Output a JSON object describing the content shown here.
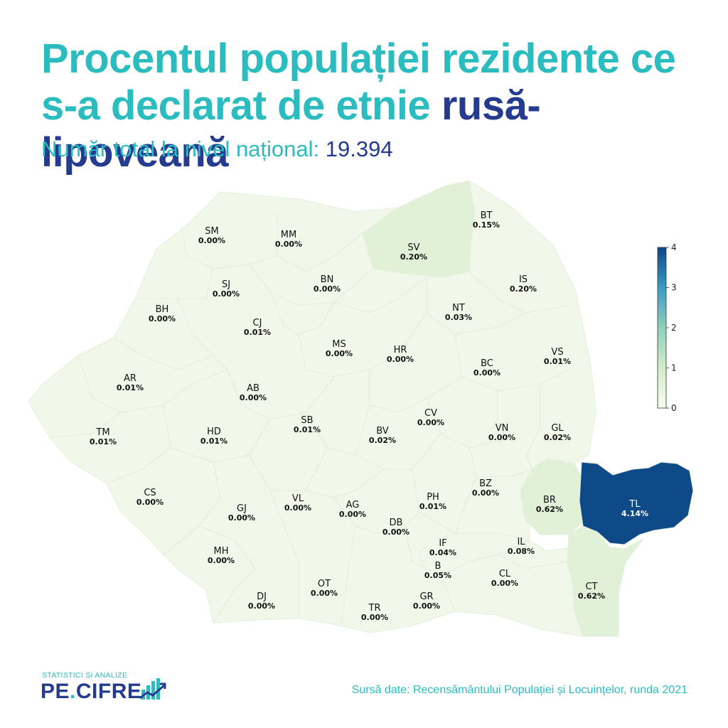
{
  "title": {
    "line1": "Procentul populației rezidente ce",
    "line2_prefix": "s-a declarat de etnie ",
    "line2_highlight": "rusă-lipoveană"
  },
  "subtitle": {
    "label": "Număr total la nivel național: ",
    "value": "19.394"
  },
  "colors": {
    "base": "#f1f8ea",
    "light": "#e0f1d8",
    "dark": "#0f4a88",
    "border": "#e4eedd"
  },
  "chart_data": {
    "type": "choropleth",
    "unit": "%",
    "colorbar": {
      "min": 0,
      "max": 4,
      "ticks": [
        "0",
        "1",
        "2",
        "3",
        "4"
      ]
    },
    "regions": [
      {
        "code": "SM",
        "value": "0.00%"
      },
      {
        "code": "MM",
        "value": "0.00%"
      },
      {
        "code": "SV",
        "value": "0.20%"
      },
      {
        "code": "BT",
        "value": "0.15%"
      },
      {
        "code": "SJ",
        "value": "0.00%"
      },
      {
        "code": "BN",
        "value": "0.00%"
      },
      {
        "code": "IS",
        "value": "0.20%"
      },
      {
        "code": "BH",
        "value": "0.00%"
      },
      {
        "code": "CJ",
        "value": "0.01%"
      },
      {
        "code": "NT",
        "value": "0.03%"
      },
      {
        "code": "MS",
        "value": "0.00%"
      },
      {
        "code": "HR",
        "value": "0.00%"
      },
      {
        "code": "BC",
        "value": "0.00%"
      },
      {
        "code": "VS",
        "value": "0.01%"
      },
      {
        "code": "AR",
        "value": "0.01%"
      },
      {
        "code": "AB",
        "value": "0.00%"
      },
      {
        "code": "CV",
        "value": "0.00%"
      },
      {
        "code": "TM",
        "value": "0.01%"
      },
      {
        "code": "HD",
        "value": "0.01%"
      },
      {
        "code": "SB",
        "value": "0.01%"
      },
      {
        "code": "BV",
        "value": "0.02%"
      },
      {
        "code": "VN",
        "value": "0.00%"
      },
      {
        "code": "GL",
        "value": "0.02%"
      },
      {
        "code": "BZ",
        "value": "0.00%"
      },
      {
        "code": "CS",
        "value": "0.00%"
      },
      {
        "code": "GJ",
        "value": "0.00%"
      },
      {
        "code": "VL",
        "value": "0.00%"
      },
      {
        "code": "AG",
        "value": "0.00%"
      },
      {
        "code": "PH",
        "value": "0.01%"
      },
      {
        "code": "BR",
        "value": "0.62%"
      },
      {
        "code": "TL",
        "value": "4.14%"
      },
      {
        "code": "DB",
        "value": "0.00%"
      },
      {
        "code": "IF",
        "value": "0.04%"
      },
      {
        "code": "IL",
        "value": "0.08%"
      },
      {
        "code": "MH",
        "value": "0.00%"
      },
      {
        "code": "B",
        "value": "0.05%"
      },
      {
        "code": "OT",
        "value": "0.00%"
      },
      {
        "code": "CL",
        "value": "0.00%"
      },
      {
        "code": "DJ",
        "value": "0.00%"
      },
      {
        "code": "GR",
        "value": "0.00%"
      },
      {
        "code": "TR",
        "value": "0.00%"
      },
      {
        "code": "CT",
        "value": "0.62%"
      }
    ]
  },
  "logo": {
    "small": "STATISTICI ȘI ANALIZE",
    "main_left": "PE",
    "main_dot": ".",
    "main_right": "CIFRE"
  },
  "source": "Sursă date: Recensământului Populației și Locuințelor, runda 2021"
}
